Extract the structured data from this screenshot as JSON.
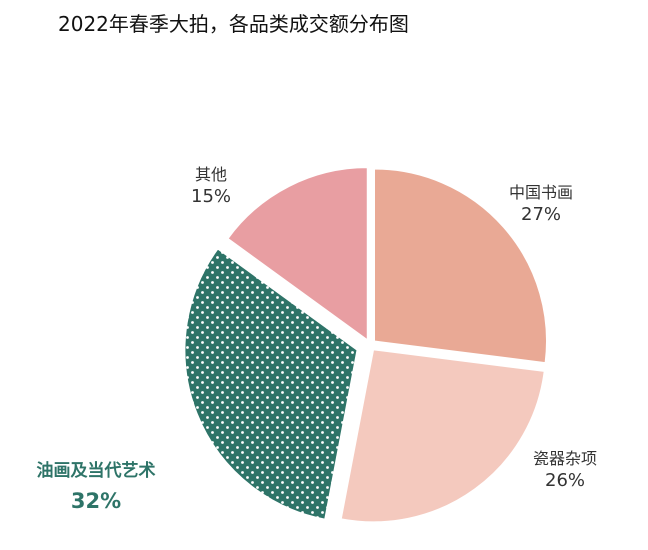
{
  "chart_data": {
    "type": "pie",
    "title": "2022年春季大拍，各品类成交额分布图",
    "slices": [
      {
        "name": "中国书画",
        "value": 27,
        "value_label": "27%",
        "color": "#E9A995"
      },
      {
        "name": "瓷器杂项",
        "value": 26,
        "value_label": "26%",
        "color": "#F4C9BE"
      },
      {
        "name": "油画及当代艺术",
        "value": 32,
        "value_label": "32%",
        "color": "#2E7468",
        "pattern": "dots",
        "exploded": true,
        "label_color": "#2E7468"
      },
      {
        "name": "其他",
        "value": 15,
        "value_label": "15%",
        "color": "#E89EA2"
      }
    ],
    "start": "12 o'clock",
    "direction": "clockwise"
  }
}
